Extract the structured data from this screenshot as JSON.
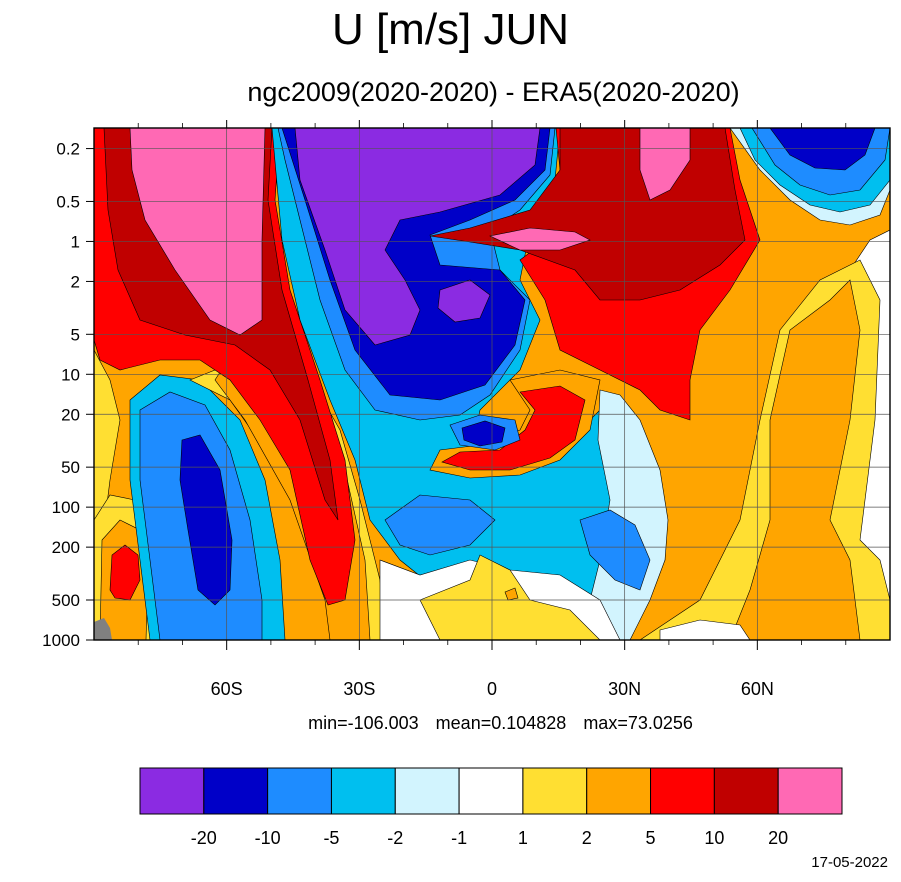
{
  "chart_data": {
    "type": "heatmap",
    "title": "U [m/s] JUN",
    "subtitle": "ngc2009(2020-2020) - ERA5(2020-2020)",
    "x_tick_labels": [
      "60S",
      "30S",
      "0",
      "30N",
      "60N"
    ],
    "x_tick_values": [
      -60,
      -30,
      0,
      30,
      60
    ],
    "x_range": [
      -90,
      90
    ],
    "y_tick_labels": [
      "0.2",
      "0.5",
      "1",
      "2",
      "5",
      "10",
      "20",
      "50",
      "100",
      "200",
      "500",
      "1000"
    ],
    "y_tick_values": [
      0.2,
      0.5,
      1,
      2,
      5,
      10,
      20,
      50,
      100,
      200,
      500,
      1000
    ],
    "y_scale": "log",
    "y_reversed": true,
    "grid": true,
    "stats": {
      "min": "min=-106.003",
      "mean": "mean=0.104828",
      "max": "max=73.0256"
    },
    "colorbar": {
      "labels": [
        "-20",
        "-10",
        "-5",
        "-2",
        "-1",
        "1",
        "2",
        "5",
        "10",
        "20"
      ],
      "colors": [
        "#8b2be2",
        "#0000c8",
        "#1e8cff",
        "#00bfef",
        "#d2f4fe",
        "#ffffff",
        "#ffdf32",
        "#ffa500",
        "#ff0000",
        "#c00000",
        "#ff69b4"
      ]
    },
    "date": "17-05-2022"
  }
}
